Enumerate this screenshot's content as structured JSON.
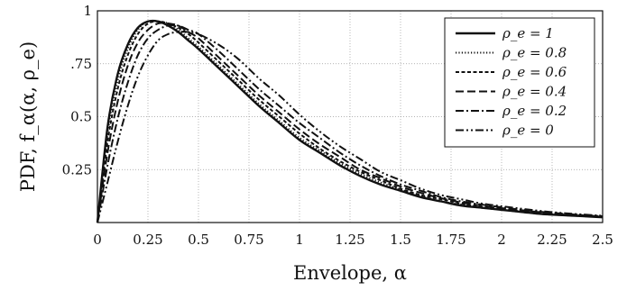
{
  "chart_data": {
    "type": "line",
    "xlabel": "Envelope, α",
    "ylabel": "PDF, f_α(α, ρ_e)",
    "xlim": [
      0,
      2.5
    ],
    "ylim": [
      0,
      1
    ],
    "grid": true,
    "legend_position": "top-right",
    "x_ticks": [
      "0",
      "0.25",
      "0.5",
      "0.75",
      "1",
      "1.25",
      "1.5",
      "1.75",
      "2",
      "2.25",
      "2.5"
    ],
    "y_ticks": [
      "0.25",
      "0.5",
      ".75",
      "1"
    ],
    "x": [
      0,
      0.05,
      0.1,
      0.15,
      0.2,
      0.25,
      0.3,
      0.35,
      0.4,
      0.45,
      0.5,
      0.6,
      0.7,
      0.8,
      0.9,
      1.0,
      1.1,
      1.2,
      1.3,
      1.4,
      1.5,
      1.6,
      1.7,
      1.8,
      1.9,
      2.0,
      2.1,
      2.2,
      2.3,
      2.4,
      2.5
    ],
    "series": [
      {
        "name": "ρ_e = 1",
        "dash": "solid",
        "values": [
          0,
          0.45,
          0.7,
          0.84,
          0.92,
          0.95,
          0.95,
          0.93,
          0.9,
          0.86,
          0.82,
          0.73,
          0.64,
          0.55,
          0.47,
          0.39,
          0.33,
          0.27,
          0.22,
          0.18,
          0.15,
          0.12,
          0.1,
          0.08,
          0.07,
          0.06,
          0.05,
          0.04,
          0.035,
          0.03,
          0.025
        ]
      },
      {
        "name": "ρ_e = 0.8",
        "dash": "dotted",
        "values": [
          0,
          0.42,
          0.67,
          0.82,
          0.91,
          0.95,
          0.95,
          0.94,
          0.91,
          0.87,
          0.83,
          0.74,
          0.65,
          0.56,
          0.48,
          0.4,
          0.34,
          0.28,
          0.23,
          0.19,
          0.155,
          0.125,
          0.1,
          0.085,
          0.07,
          0.06,
          0.05,
          0.04,
          0.035,
          0.03,
          0.026
        ]
      },
      {
        "name": "ρ_e = 0.6",
        "dash": "short-dash",
        "values": [
          0,
          0.38,
          0.63,
          0.79,
          0.89,
          0.94,
          0.95,
          0.94,
          0.92,
          0.89,
          0.85,
          0.76,
          0.67,
          0.58,
          0.5,
          0.42,
          0.35,
          0.29,
          0.24,
          0.2,
          0.16,
          0.13,
          0.11,
          0.09,
          0.075,
          0.065,
          0.055,
          0.045,
          0.038,
          0.032,
          0.027
        ]
      },
      {
        "name": "ρ_e = 0.4",
        "dash": "long-dash",
        "values": [
          0,
          0.33,
          0.57,
          0.74,
          0.85,
          0.91,
          0.94,
          0.94,
          0.93,
          0.9,
          0.87,
          0.78,
          0.69,
          0.6,
          0.52,
          0.44,
          0.37,
          0.31,
          0.25,
          0.21,
          0.17,
          0.14,
          0.115,
          0.095,
          0.08,
          0.068,
          0.058,
          0.048,
          0.04,
          0.034,
          0.028
        ]
      },
      {
        "name": "ρ_e = 0.2",
        "dash": "dash-dot",
        "values": [
          0,
          0.27,
          0.49,
          0.66,
          0.79,
          0.87,
          0.91,
          0.93,
          0.93,
          0.91,
          0.89,
          0.81,
          0.72,
          0.63,
          0.55,
          0.47,
          0.4,
          0.33,
          0.27,
          0.22,
          0.18,
          0.15,
          0.12,
          0.1,
          0.085,
          0.072,
          0.06,
          0.05,
          0.042,
          0.035,
          0.03
        ]
      },
      {
        "name": "ρ_e = 0",
        "dash": "dash-dot-dot",
        "values": [
          0,
          0.19,
          0.38,
          0.55,
          0.69,
          0.79,
          0.86,
          0.89,
          0.9,
          0.9,
          0.89,
          0.84,
          0.77,
          0.68,
          0.6,
          0.51,
          0.43,
          0.36,
          0.3,
          0.24,
          0.2,
          0.16,
          0.13,
          0.11,
          0.09,
          0.077,
          0.065,
          0.054,
          0.045,
          0.038,
          0.032
        ]
      }
    ]
  }
}
